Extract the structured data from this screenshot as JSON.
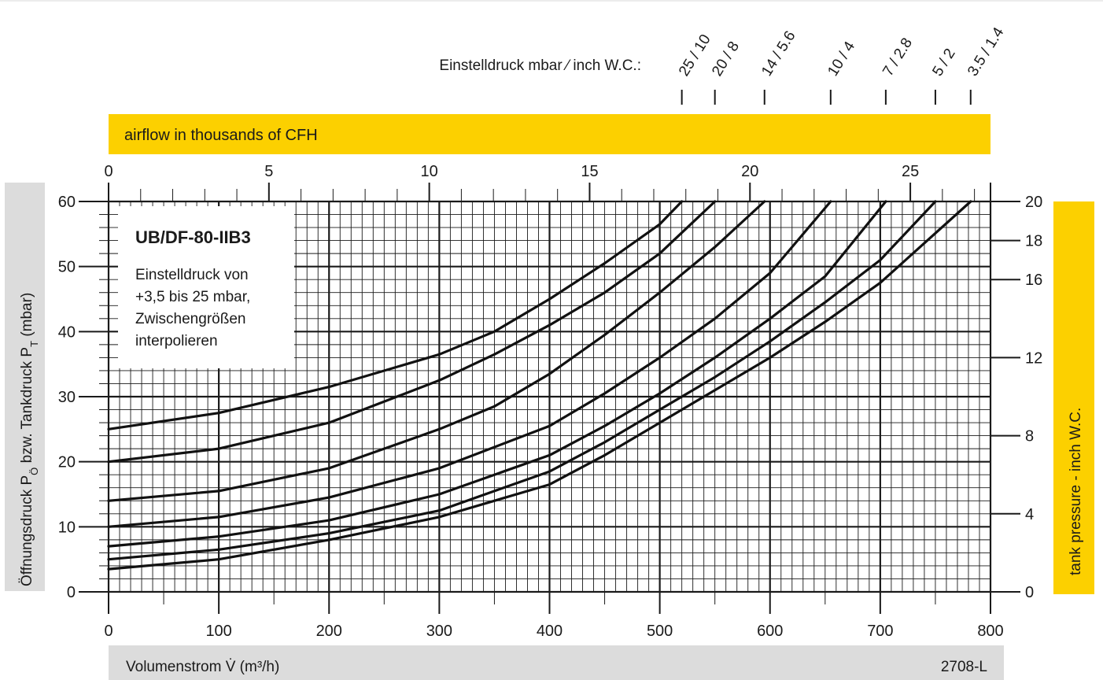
{
  "setting_header": "Einstelldruck mbar ⁄ inch W.C.:",
  "setting_labels": [
    "25 / 10",
    "20 / 8",
    "14 / 5.6",
    "10 / 4",
    "7 / 2.8",
    "5 / 2",
    "3.5 / 1.4"
  ],
  "top_axis_banner": "airflow in thousands of CFH",
  "bottom_axis_banner": "Volumenstrom V̇ (m³/h)",
  "figure_code": "2708-L",
  "left_axis_label": "Öffnungsdruck P",
  "left_axis_sub1": "Ö",
  "left_axis_mid": " bzw. Tankdruck P",
  "left_axis_sub2": "T",
  "left_axis_unit": " (mbar)",
  "right_axis_label": "tank pressure  - inch W.C.",
  "legend": {
    "title": "UB/DF-80-IIB3",
    "lines": [
      "Einstelldruck von",
      "+3,5 bis 25 mbar,",
      "Zwischengrößen",
      "interpolieren"
    ]
  },
  "colors": {
    "banner_yellow": "#fcd000",
    "banner_gray": "#dcdcdc",
    "curve": "#111111",
    "grid": "#1a1a1a"
  },
  "chart_data": {
    "type": "line",
    "x_axis": {
      "label": "Volumenstrom V̇ (m³/h)",
      "range": [
        0,
        800
      ],
      "ticks": [
        0,
        100,
        200,
        300,
        400,
        500,
        600,
        700,
        800
      ]
    },
    "x2_axis": {
      "label": "airflow in thousands of CFH",
      "range": [
        0,
        27.5
      ],
      "ticks": [
        0,
        5,
        10,
        15,
        20,
        25
      ]
    },
    "y_axis": {
      "label": "Öffnungsdruck PÖ bzw. Tankdruck PT (mbar)",
      "range": [
        0,
        60
      ],
      "ticks": [
        0,
        10,
        20,
        30,
        40,
        50,
        60
      ]
    },
    "y2_axis": {
      "label": "tank pressure  - inch W.C.",
      "range": [
        0,
        20
      ],
      "ticks": [
        0,
        4,
        8,
        12,
        16,
        18,
        20
      ]
    },
    "grid": true,
    "series": [
      {
        "name": "25 / 10",
        "x": [
          0,
          100,
          200,
          300,
          350,
          400,
          450,
          500,
          520
        ],
        "y": [
          25,
          27.5,
          31.5,
          36.5,
          40,
          45,
          50.5,
          56.5,
          60
        ]
      },
      {
        "name": "20 / 8",
        "x": [
          0,
          100,
          200,
          300,
          350,
          400,
          450,
          500,
          550
        ],
        "y": [
          20,
          22,
          26,
          32.5,
          36.5,
          41,
          46,
          52,
          60
        ]
      },
      {
        "name": "14 / 5.6",
        "x": [
          0,
          100,
          200,
          300,
          350,
          400,
          450,
          500,
          550,
          595
        ],
        "y": [
          14,
          15.5,
          19,
          25,
          28.5,
          33.5,
          39.5,
          46,
          53,
          60
        ]
      },
      {
        "name": "10 / 4",
        "x": [
          0,
          100,
          200,
          300,
          400,
          450,
          500,
          550,
          600,
          655
        ],
        "y": [
          10,
          11.5,
          14.5,
          19,
          25.5,
          30.5,
          36,
          42,
          49,
          60
        ]
      },
      {
        "name": "7 / 2.8",
        "x": [
          0,
          100,
          200,
          300,
          400,
          450,
          500,
          550,
          600,
          650,
          705
        ],
        "y": [
          7,
          8.5,
          11,
          15,
          21,
          25.5,
          30.5,
          36,
          42,
          48.5,
          60
        ]
      },
      {
        "name": "5 / 2",
        "x": [
          0,
          100,
          200,
          300,
          400,
          450,
          500,
          550,
          600,
          650,
          700,
          750
        ],
        "y": [
          5,
          6.5,
          9,
          12.5,
          18.5,
          23,
          28,
          33,
          38.5,
          44.5,
          51,
          60
        ]
      },
      {
        "name": "3.5 / 1.4",
        "x": [
          0,
          100,
          200,
          300,
          400,
          450,
          500,
          550,
          600,
          650,
          700,
          782
        ],
        "y": [
          3.5,
          5,
          8,
          11.5,
          16.5,
          21,
          26,
          31,
          36,
          41.5,
          47.5,
          60
        ]
      }
    ]
  }
}
